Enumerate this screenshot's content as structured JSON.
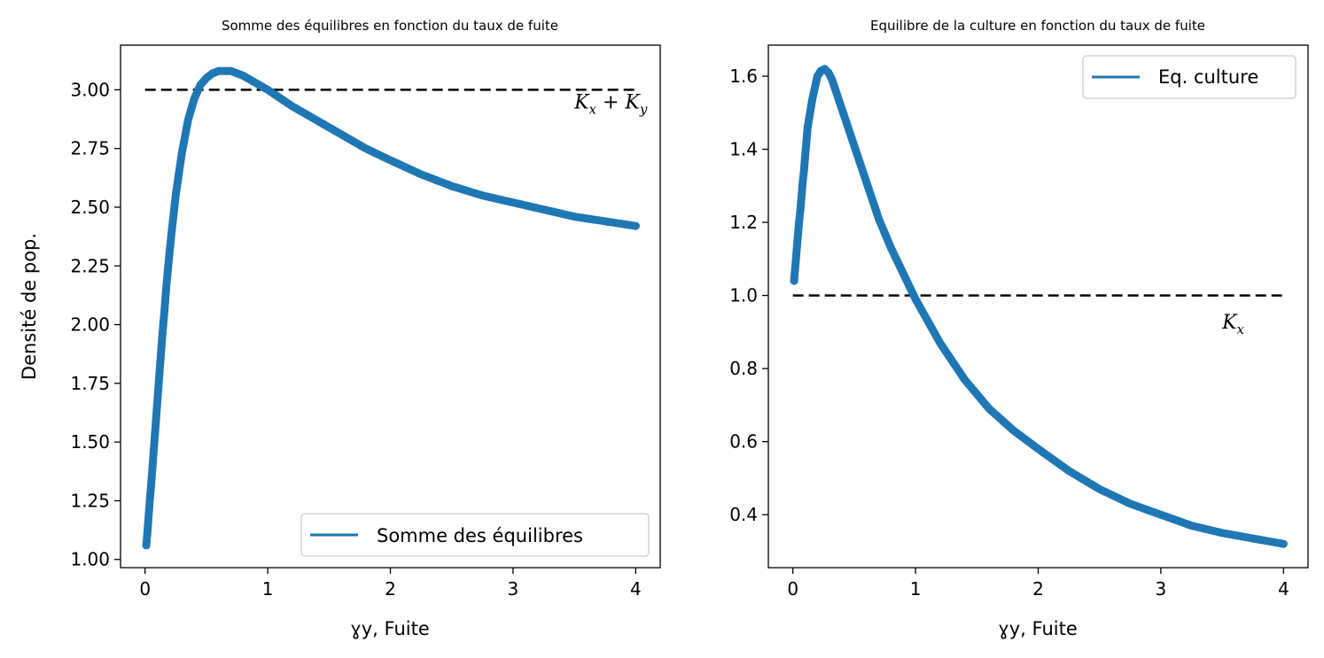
{
  "colors": {
    "series": "#1f77b4",
    "reference": "#000000",
    "frame": "#000000",
    "legend_border": "#cccccc"
  },
  "chart_data": [
    {
      "type": "scatter",
      "title": "Somme des équilibres en fonction du taux de fuite",
      "xlabel": "ɣy, Fuite",
      "ylabel": "Densité de pop.",
      "xlim": [
        -0.2,
        4.2
      ],
      "ylim": [
        0.965,
        3.19
      ],
      "xticks": [
        0,
        1,
        2,
        3,
        4
      ],
      "xtick_labels": [
        "0",
        "1",
        "2",
        "3",
        "4"
      ],
      "yticks": [
        1.0,
        1.25,
        1.5,
        1.75,
        2.0,
        2.25,
        2.5,
        2.75,
        3.0
      ],
      "ytick_labels": [
        "1.00",
        "1.25",
        "1.50",
        "1.75",
        "2.00",
        "2.25",
        "2.50",
        "2.75",
        "3.00"
      ],
      "legend": {
        "label": "Somme des équilibres",
        "position": "lower right"
      },
      "reference_line": {
        "y": 3.0,
        "x_range": [
          0,
          4
        ],
        "style": "dashed",
        "label": "K_x + K_y",
        "label_x": 3.5,
        "label_y": 2.92
      },
      "series": [
        {
          "points": [
            [
              0.01,
              1.06
            ],
            [
              0.02,
              1.12
            ],
            [
              0.03,
              1.19
            ],
            [
              0.04,
              1.26
            ],
            [
              0.05,
              1.32
            ],
            [
              0.06,
              1.39
            ],
            [
              0.07,
              1.46
            ],
            [
              0.08,
              1.53
            ],
            [
              0.09,
              1.6
            ],
            [
              0.1,
              1.67
            ],
            [
              0.11,
              1.74
            ],
            [
              0.12,
              1.81
            ],
            [
              0.13,
              1.88
            ],
            [
              0.14,
              1.95
            ],
            [
              0.15,
              2.01
            ],
            [
              0.16,
              2.07
            ],
            [
              0.17,
              2.14
            ],
            [
              0.18,
              2.2
            ],
            [
              0.2,
              2.31
            ],
            [
              0.22,
              2.41
            ],
            [
              0.25,
              2.55
            ],
            [
              0.28,
              2.66
            ],
            [
              0.3,
              2.73
            ],
            [
              0.35,
              2.87
            ],
            [
              0.4,
              2.96
            ],
            [
              0.45,
              3.02
            ],
            [
              0.5,
              3.05
            ],
            [
              0.55,
              3.07
            ],
            [
              0.6,
              3.08
            ],
            [
              0.65,
              3.08
            ],
            [
              0.7,
              3.08
            ],
            [
              0.8,
              3.06
            ],
            [
              0.9,
              3.03
            ],
            [
              1.0,
              3.0
            ],
            [
              1.2,
              2.93
            ],
            [
              1.4,
              2.87
            ],
            [
              1.6,
              2.81
            ],
            [
              1.8,
              2.75
            ],
            [
              2.0,
              2.7
            ],
            [
              2.25,
              2.64
            ],
            [
              2.5,
              2.59
            ],
            [
              2.75,
              2.55
            ],
            [
              3.0,
              2.52
            ],
            [
              3.25,
              2.49
            ],
            [
              3.5,
              2.46
            ],
            [
              3.75,
              2.44
            ],
            [
              4.0,
              2.42
            ]
          ]
        }
      ]
    },
    {
      "type": "scatter",
      "title": "Equilibre de la culture en fonction du taux de fuite",
      "xlabel": "ɣy, Fuite",
      "ylabel": "",
      "xlim": [
        -0.2,
        4.2
      ],
      "ylim": [
        0.255,
        1.685
      ],
      "xticks": [
        0,
        1,
        2,
        3,
        4
      ],
      "xtick_labels": [
        "0",
        "1",
        "2",
        "3",
        "4"
      ],
      "yticks": [
        0.4,
        0.6,
        0.8,
        1.0,
        1.2,
        1.4,
        1.6
      ],
      "ytick_labels": [
        "0.4",
        "0.6",
        "0.8",
        "1.0",
        "1.2",
        "1.4",
        "1.6"
      ],
      "legend": {
        "label": "Eq. culture",
        "position": "upper right"
      },
      "reference_line": {
        "y": 1.0,
        "x_range": [
          0,
          4
        ],
        "style": "dashed",
        "label": "K_x",
        "label_x": 3.5,
        "label_y": 0.91
      },
      "series": [
        {
          "points": [
            [
              0.01,
              1.04
            ],
            [
              0.02,
              1.08
            ],
            [
              0.03,
              1.12
            ],
            [
              0.04,
              1.16
            ],
            [
              0.05,
              1.2
            ],
            [
              0.06,
              1.23
            ],
            [
              0.07,
              1.27
            ],
            [
              0.08,
              1.31
            ],
            [
              0.09,
              1.34
            ],
            [
              0.1,
              1.38
            ],
            [
              0.11,
              1.42
            ],
            [
              0.12,
              1.46
            ],
            [
              0.14,
              1.5
            ],
            [
              0.16,
              1.54
            ],
            [
              0.18,
              1.57
            ],
            [
              0.2,
              1.6
            ],
            [
              0.23,
              1.615
            ],
            [
              0.26,
              1.62
            ],
            [
              0.29,
              1.61
            ],
            [
              0.32,
              1.59
            ],
            [
              0.36,
              1.55
            ],
            [
              0.4,
              1.51
            ],
            [
              0.45,
              1.46
            ],
            [
              0.5,
              1.41
            ],
            [
              0.6,
              1.31
            ],
            [
              0.7,
              1.21
            ],
            [
              0.8,
              1.13
            ],
            [
              0.9,
              1.06
            ],
            [
              1.0,
              0.99
            ],
            [
              1.2,
              0.87
            ],
            [
              1.4,
              0.77
            ],
            [
              1.6,
              0.69
            ],
            [
              1.8,
              0.63
            ],
            [
              2.0,
              0.58
            ],
            [
              2.25,
              0.52
            ],
            [
              2.5,
              0.47
            ],
            [
              2.75,
              0.43
            ],
            [
              3.0,
              0.4
            ],
            [
              3.25,
              0.37
            ],
            [
              3.5,
              0.35
            ],
            [
              3.75,
              0.335
            ],
            [
              4.0,
              0.32
            ]
          ]
        }
      ]
    }
  ]
}
